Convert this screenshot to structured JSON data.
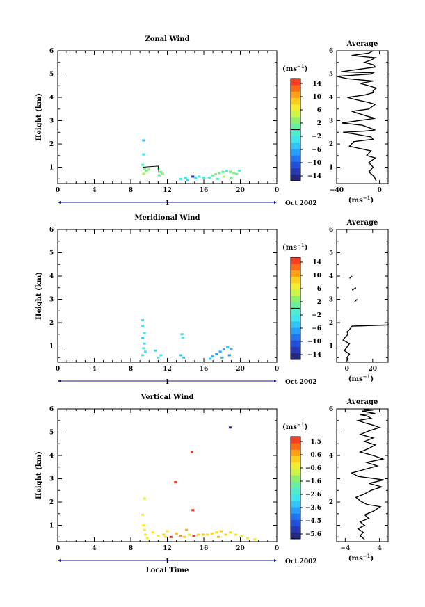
{
  "chart_data": [
    {
      "type": "heatmap",
      "title": "Zonal Wind",
      "ylabel": "Height (km)",
      "xlabel": "",
      "xlim": [
        0,
        24
      ],
      "ylim": [
        0.3,
        6
      ],
      "xticks": [
        "0",
        "4",
        "8",
        "12",
        "16",
        "20",
        "0"
      ],
      "yticks": [
        "1",
        "2",
        "3",
        "4",
        "5",
        "6"
      ],
      "date_label": "Oct 2002",
      "day_label": "1",
      "colorbar": {
        "unit": "(ms",
        "unit_exp": "−1",
        "ticks": [
          "14",
          "10",
          "6",
          "2",
          "−2",
          "−6",
          "−10",
          "−14"
        ],
        "range": [
          -16,
          16
        ],
        "zero_line": 0
      },
      "cells": [
        [
          9.4,
          2.15,
          -5
        ],
        [
          9.4,
          1.55,
          -3
        ],
        [
          9.3,
          1.1,
          0
        ],
        [
          9.5,
          0.95,
          1
        ],
        [
          9.7,
          0.85,
          2
        ],
        [
          9.4,
          0.72,
          4
        ],
        [
          10.0,
          0.9,
          3
        ],
        [
          11.0,
          0.95,
          2
        ],
        [
          11.3,
          0.8,
          1
        ],
        [
          11.5,
          0.72,
          3
        ],
        [
          11.1,
          0.65,
          0
        ],
        [
          13.5,
          0.5,
          -2
        ],
        [
          14.0,
          0.55,
          -3
        ],
        [
          14.2,
          0.45,
          -4
        ],
        [
          14.8,
          0.6,
          -13
        ],
        [
          15.1,
          0.55,
          -3
        ],
        [
          15.5,
          0.6,
          -2
        ],
        [
          16.0,
          0.55,
          -2
        ],
        [
          16.6,
          0.55,
          -1
        ],
        [
          17.0,
          0.65,
          1
        ],
        [
          17.3,
          0.7,
          3
        ],
        [
          17.7,
          0.75,
          2
        ],
        [
          18.1,
          0.8,
          1
        ],
        [
          18.5,
          0.85,
          0
        ],
        [
          18.9,
          0.8,
          2
        ],
        [
          19.3,
          0.75,
          3
        ],
        [
          19.6,
          0.7,
          1
        ],
        [
          19.9,
          0.85,
          0
        ],
        [
          18.2,
          0.6,
          4
        ],
        [
          17.5,
          0.5,
          0
        ],
        [
          19.0,
          0.55,
          2
        ]
      ],
      "contour": [
        [
          9.3,
          1.0
        ],
        [
          11.0,
          1.05
        ],
        [
          11.1,
          0.65
        ]
      ],
      "profile": {
        "title": "Average",
        "xlim": [
          -40,
          8
        ],
        "xticks": [
          "−40",
          "0"
        ],
        "xlabel": "(ms",
        "xlabel_exp": "−1",
        "ylim": [
          0.3,
          6
        ],
        "yticks": [
          "1",
          "2",
          "3",
          "4",
          "5",
          "6"
        ],
        "x": [
          -3,
          -5,
          -10,
          -8,
          -6,
          -10,
          -4,
          -12,
          -8,
          -28,
          -24,
          -6,
          -8,
          -20,
          -34,
          -14,
          -4,
          -16,
          -35,
          -20,
          -4,
          -12,
          -26,
          -10,
          -4,
          -12,
          -22,
          -30,
          -14,
          -6,
          -6,
          -3,
          -10,
          -18,
          -6,
          -30,
          -40,
          -8,
          -6,
          -36,
          -20,
          -4,
          -6,
          -14,
          -8,
          -4,
          -26,
          -10,
          -6
        ],
        "y": [
          0.4,
          0.6,
          0.8,
          0.9,
          1.0,
          1.2,
          1.4,
          1.5,
          1.7,
          1.9,
          2.1,
          2.2,
          2.3,
          2.4,
          2.5,
          2.55,
          2.6,
          2.8,
          2.9,
          3.0,
          3.1,
          3.2,
          3.4,
          3.5,
          3.7,
          3.8,
          3.9,
          4.0,
          4.1,
          4.2,
          4.3,
          4.4,
          4.5,
          4.6,
          4.7,
          4.8,
          4.9,
          5.0,
          5.05,
          5.1,
          5.2,
          5.3,
          5.4,
          5.5,
          5.6,
          5.7,
          5.8,
          5.9,
          6.0
        ]
      }
    },
    {
      "type": "heatmap",
      "title": "Meridional Wind",
      "ylabel": "Height (km)",
      "xlabel": "",
      "xlim": [
        0,
        24
      ],
      "ylim": [
        0.3,
        6
      ],
      "xticks": [
        "0",
        "4",
        "8",
        "12",
        "16",
        "20",
        "0"
      ],
      "yticks": [
        "1",
        "2",
        "3",
        "4",
        "5",
        "6"
      ],
      "date_label": "Oct 2002",
      "day_label": "1",
      "colorbar": {
        "unit": "(ms",
        "unit_exp": "−1",
        "ticks": [
          "14",
          "10",
          "6",
          "2",
          "−2",
          "−6",
          "−10",
          "−14"
        ],
        "range": [
          -16,
          16
        ],
        "zero_line": 0
      },
      "cells": [
        [
          9.3,
          2.1,
          -3
        ],
        [
          9.3,
          1.85,
          -2
        ],
        [
          9.5,
          1.55,
          -3
        ],
        [
          9.3,
          1.35,
          -4
        ],
        [
          9.5,
          1.1,
          -3
        ],
        [
          9.4,
          0.9,
          -2
        ],
        [
          9.6,
          0.75,
          -3
        ],
        [
          9.3,
          0.6,
          -2
        ],
        [
          10.7,
          0.8,
          -4
        ],
        [
          11.3,
          0.6,
          -2
        ],
        [
          11.0,
          0.5,
          -3
        ],
        [
          13.5,
          0.6,
          -5
        ],
        [
          13.8,
          0.5,
          -4
        ],
        [
          13.6,
          1.5,
          -3
        ],
        [
          13.7,
          1.35,
          -2
        ],
        [
          17.0,
          0.55,
          -6
        ],
        [
          17.4,
          0.65,
          -7
        ],
        [
          17.8,
          0.75,
          -6
        ],
        [
          18.2,
          0.85,
          -7
        ],
        [
          18.6,
          0.95,
          -5
        ],
        [
          19.0,
          0.85,
          -6
        ],
        [
          18.0,
          0.5,
          -6
        ],
        [
          18.8,
          0.6,
          -7
        ],
        [
          16.7,
          0.45,
          -5
        ]
      ],
      "contour": [],
      "profile": {
        "title": "Average",
        "xlim": [
          -8,
          32
        ],
        "xticks": [
          "0",
          "20"
        ],
        "xlabel": "(ms",
        "xlabel_exp": "−1",
        "ylim": [
          0.3,
          6
        ],
        "yticks": [
          "1",
          "2",
          "3",
          "4",
          "5",
          "6"
        ],
        "x": [
          1,
          0,
          2,
          -2,
          0,
          2,
          -3,
          -1,
          1,
          0,
          2,
          4,
          32,
          32
        ],
        "y": [
          0.35,
          0.5,
          0.65,
          0.8,
          0.95,
          1.1,
          1.25,
          1.4,
          1.5,
          1.6,
          1.7,
          1.85,
          1.9,
          1.95
        ],
        "segments": [
          [
            [
              2,
              3.9
            ],
            [
              4,
              4.0
            ]
          ],
          [
            [
              4,
              3.4
            ],
            [
              7,
              3.5
            ]
          ],
          [
            [
              6,
              2.9
            ],
            [
              8,
              3.0
            ]
          ]
        ]
      }
    },
    {
      "type": "heatmap",
      "title": "Vertical Wind",
      "ylabel": "Height (km)",
      "xlabel": "Local Time",
      "xlim": [
        0,
        24
      ],
      "ylim": [
        0.3,
        6
      ],
      "xticks": [
        "0",
        "4",
        "8",
        "12",
        "16",
        "20",
        "0"
      ],
      "yticks": [
        "1",
        "2",
        "3",
        "4",
        "5",
        "6"
      ],
      "date_label": "Oct 2002",
      "day_label": "1",
      "colorbar": {
        "unit": "(ms",
        "unit_exp": "−1",
        "ticks": [
          "1.5",
          "0.6",
          "−0.6",
          "−1.6",
          "−2.6",
          "−3.6",
          "−4.5",
          "−5.6"
        ],
        "range": [
          -6.0,
          2.0
        ],
        "zero_line": null
      },
      "cells": [
        [
          18.9,
          5.2,
          -5.5
        ],
        [
          14.7,
          4.15,
          1.8
        ],
        [
          12.9,
          2.85,
          1.8
        ],
        [
          14.8,
          1.65,
          1.8
        ],
        [
          9.5,
          2.15,
          -0.3
        ],
        [
          9.3,
          1.45,
          -0.2
        ],
        [
          9.4,
          1.0,
          -0.1
        ],
        [
          9.5,
          0.8,
          -0.3
        ],
        [
          9.6,
          0.6,
          -0.2
        ],
        [
          9.8,
          0.45,
          -0.4
        ],
        [
          10.4,
          0.7,
          -0.2
        ],
        [
          11.0,
          0.55,
          -0.1
        ],
        [
          11.6,
          0.6,
          0.2
        ],
        [
          12.4,
          0.5,
          1.9
        ],
        [
          13.0,
          0.65,
          0.5
        ],
        [
          13.5,
          0.55,
          0.9
        ],
        [
          13.9,
          0.5,
          0.3
        ],
        [
          14.4,
          0.6,
          -0.1
        ],
        [
          14.9,
          0.55,
          1.8
        ],
        [
          15.4,
          0.6,
          0.2
        ],
        [
          15.9,
          0.6,
          0.3
        ],
        [
          16.4,
          0.6,
          0.1
        ],
        [
          16.9,
          0.65,
          0.2
        ],
        [
          17.4,
          0.7,
          0.1
        ],
        [
          17.9,
          0.75,
          0.3
        ],
        [
          18.4,
          0.6,
          0.2
        ],
        [
          18.9,
          0.7,
          0.1
        ],
        [
          19.5,
          0.6,
          0.0
        ],
        [
          20.1,
          0.55,
          -0.2
        ],
        [
          20.8,
          0.45,
          -0.4
        ],
        [
          21.6,
          0.4,
          -0.3
        ],
        [
          12.0,
          0.75,
          -0.3
        ],
        [
          11.8,
          0.5,
          0.0
        ],
        [
          17.6,
          0.5,
          0.4
        ],
        [
          14.1,
          0.8,
          0.6
        ]
      ],
      "contour": [],
      "profile": {
        "title": "Average",
        "xlim": [
          -6,
          6
        ],
        "xticks": [
          "−4",
          "4"
        ],
        "xlabel": "(ms",
        "xlabel_exp": "−1",
        "ylim": [
          0.3,
          6
        ],
        "yticks": [
          "2",
          "4",
          "6"
        ],
        "ytick_values": [
          2,
          4,
          6
        ],
        "ytick_minor": [
          1,
          3,
          5
        ],
        "x": [
          0.5,
          -0.5,
          0.2,
          -1.0,
          0.5,
          -0.5,
          1.5,
          0.5,
          2.5,
          4.2,
          1.0,
          -0.5,
          -1.5,
          0.5,
          2.0,
          4.5,
          1.5,
          5.0,
          -1.0,
          -2.5,
          0.5,
          3.5,
          1.0,
          4.8,
          2.5,
          -0.5,
          1.5,
          3.0,
          0.5,
          2.5,
          -0.5,
          1.5,
          4.0,
          2.5,
          0.5,
          -1.0,
          2.0,
          1.0,
          -0.5,
          3.0,
          1.5,
          0.0,
          2.5,
          0.5,
          1.5
        ],
        "y": [
          0.4,
          0.55,
          0.7,
          0.85,
          1.0,
          1.15,
          1.3,
          1.45,
          1.6,
          1.8,
          1.9,
          2.05,
          2.2,
          2.35,
          2.5,
          2.65,
          2.8,
          2.95,
          3.1,
          3.25,
          3.4,
          3.55,
          3.7,
          3.85,
          4.0,
          4.15,
          4.3,
          4.45,
          4.6,
          4.75,
          4.9,
          5.05,
          5.2,
          5.3,
          5.4,
          5.5,
          5.6,
          5.7,
          5.75,
          5.8,
          5.85,
          5.9,
          5.95,
          5.97,
          6.0
        ]
      }
    }
  ]
}
